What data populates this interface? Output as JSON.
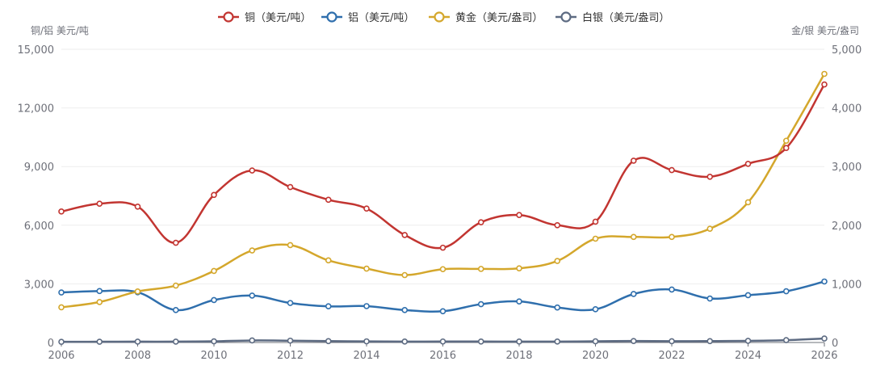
{
  "chart_data": {
    "type": "line",
    "title": "",
    "x": [
      "2006",
      "2007",
      "2008",
      "2009",
      "2010",
      "2011",
      "2012",
      "2013",
      "2014",
      "2015",
      "2016",
      "2017",
      "2018",
      "2019",
      "2020",
      "2021",
      "2022",
      "2023",
      "2024",
      "2025",
      "2026"
    ],
    "x_tick_labels": [
      "2006",
      "2008",
      "2010",
      "2012",
      "2014",
      "2016",
      "2018",
      "2020",
      "2022",
      "2024",
      "2026"
    ],
    "y_left": {
      "label": "铜/铝 美元/吨",
      "range": [
        0,
        15000
      ],
      "ticks": [
        "0",
        "3,000",
        "6,000",
        "9,000",
        "12,000",
        "15,000"
      ]
    },
    "y_right": {
      "label": "金/银 美元/盎司",
      "range": [
        0,
        5000
      ],
      "ticks": [
        "0",
        "1,000",
        "2,000",
        "3,000",
        "4,000",
        "5,000"
      ]
    },
    "legend_position": "top-center",
    "grid": true,
    "series": [
      {
        "name": "铜（美元/吨）",
        "axis": "left",
        "color": "#c23531",
        "values": [
          6700,
          7100,
          6950,
          5100,
          7550,
          8800,
          7950,
          7300,
          6850,
          5500,
          4850,
          6150,
          6520,
          6000,
          6180,
          9300,
          8820,
          8480,
          9140,
          9950,
          13200
        ]
      },
      {
        "name": "铝（美元/吨）",
        "axis": "left",
        "color": "#2f6fad",
        "values": [
          2560,
          2630,
          2570,
          1660,
          2170,
          2400,
          2020,
          1850,
          1860,
          1660,
          1600,
          1960,
          2100,
          1790,
          1700,
          2480,
          2710,
          2250,
          2420,
          2620,
          3120
        ]
      },
      {
        "name": "黄金（美元/盎司）",
        "axis": "right",
        "color": "#d4a72c",
        "values": [
          600,
          690,
          870,
          970,
          1220,
          1570,
          1660,
          1400,
          1260,
          1150,
          1250,
          1255,
          1265,
          1390,
          1770,
          1800,
          1800,
          1940,
          2390,
          3440,
          4580
        ]
      },
      {
        "name": "白银（美元/盎司）",
        "axis": "right",
        "color": "#5d6b82",
        "values": [
          11.5,
          13.4,
          15.0,
          14.7,
          20.2,
          35.1,
          31.1,
          23.8,
          19.1,
          15.7,
          17.1,
          17.0,
          15.7,
          16.2,
          20.5,
          25.1,
          21.7,
          23.4,
          28.3,
          40,
          68
        ]
      }
    ]
  }
}
